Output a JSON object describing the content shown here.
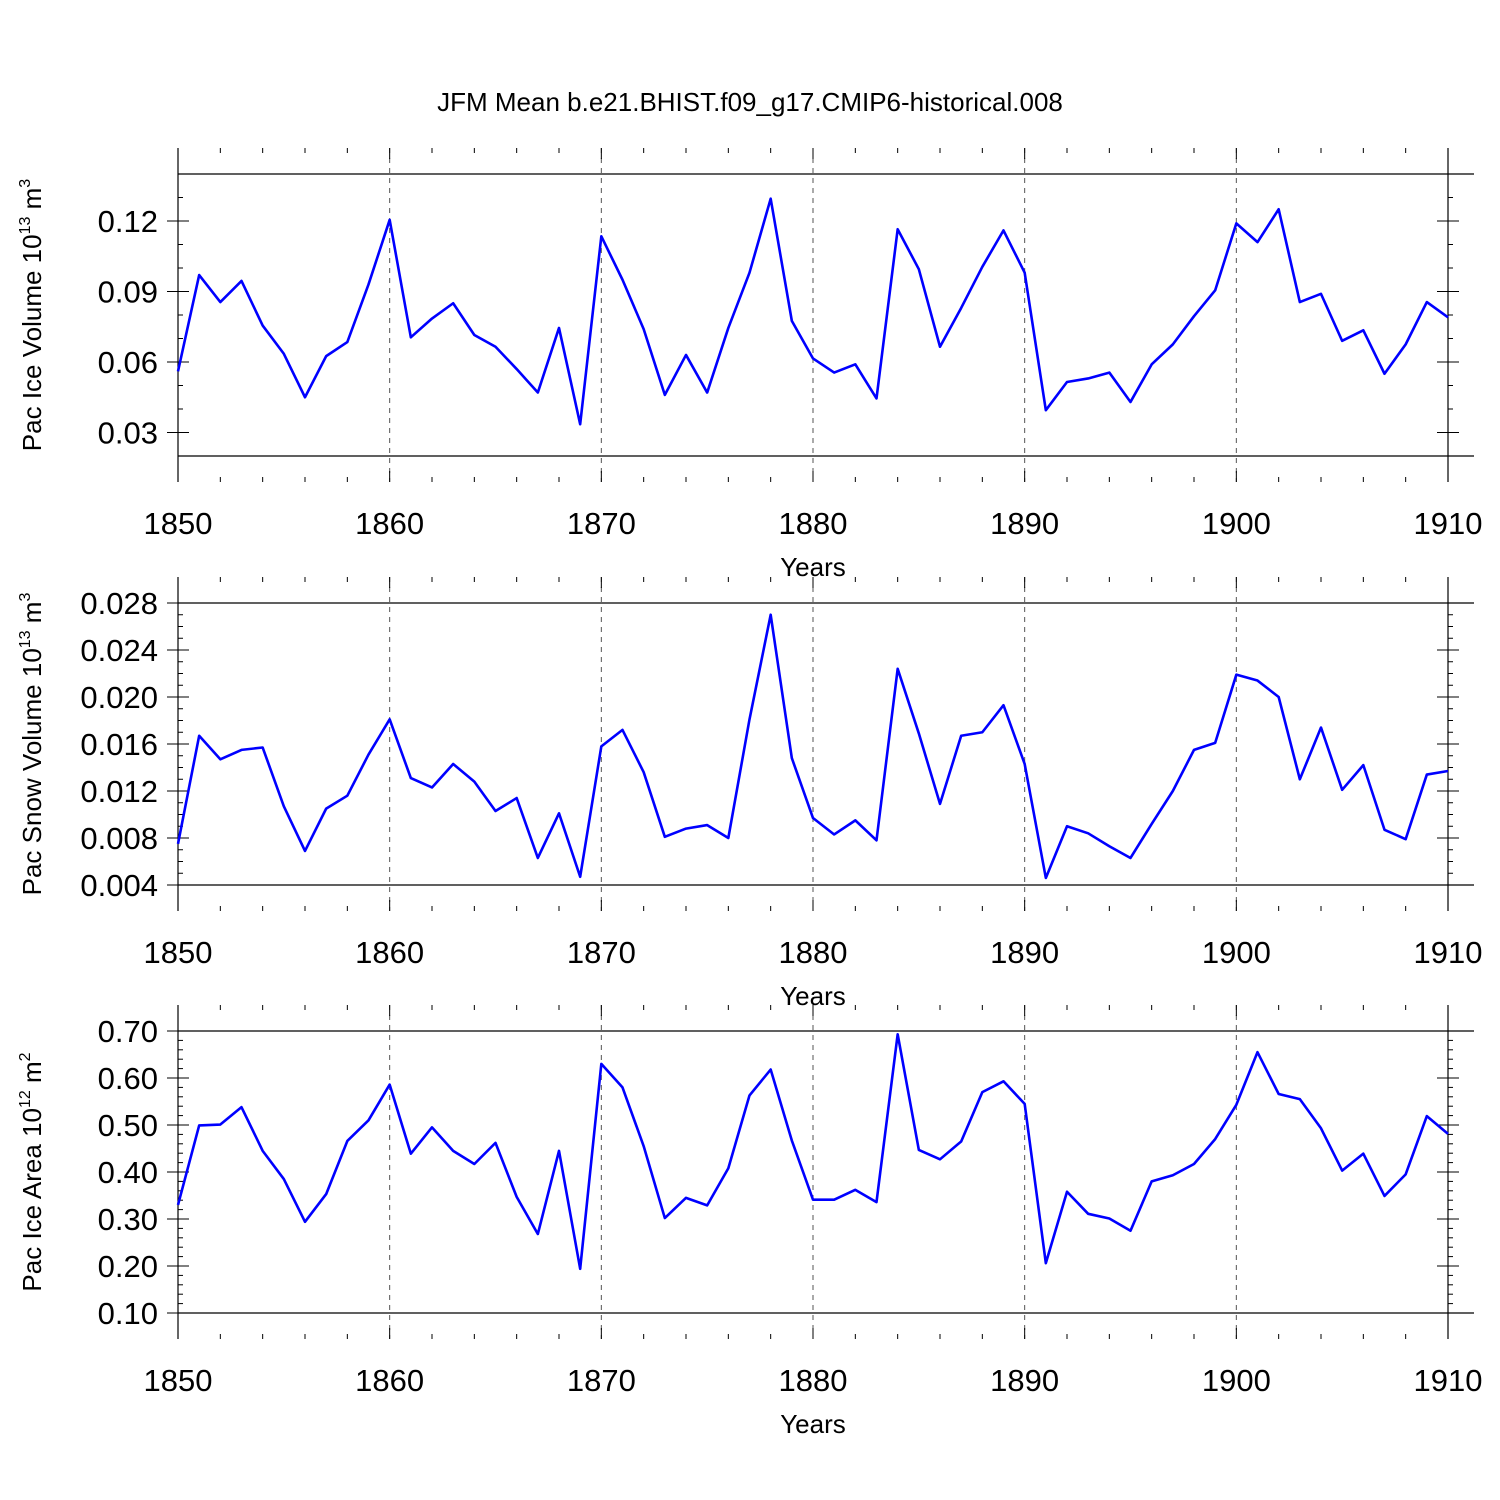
{
  "title": "JFM Mean b.e21.BHIST.f09_g17.CMIP6-historical.008",
  "chart_data": [
    {
      "type": "line",
      "title": "JFM Mean b.e21.BHIST.f09_g17.CMIP6-historical.008",
      "ylabel": "Pac Ice Volume 10",
      "ylabel_exp": "13",
      "ylabel_unit": " m",
      "ylabel_unit_exp": "3",
      "xlabel": "Years",
      "xlim": [
        1850,
        1910
      ],
      "ylim": [
        0.02,
        0.14
      ],
      "yticks": [
        0.03,
        0.06,
        0.09,
        0.12
      ],
      "ytick_labels": [
        "0.03",
        "0.06",
        "0.09",
        "0.12"
      ],
      "yminor_step": 0.01,
      "xticks": [
        1850,
        1860,
        1870,
        1880,
        1890,
        1900,
        1910
      ],
      "xtick_labels": [
        "1850",
        "1860",
        "1870",
        "1880",
        "1890",
        "1900",
        "1910"
      ],
      "grid_x": [
        1860,
        1870,
        1880,
        1890,
        1900
      ],
      "series": [
        {
          "name": "Pac Ice Volume",
          "color": "#0000ff",
          "x_start": 1850,
          "values": [
            0.056,
            0.097,
            0.0855,
            0.0945,
            0.0755,
            0.0635,
            0.045,
            0.0625,
            0.0685,
            0.093,
            0.1205,
            0.0705,
            0.0785,
            0.085,
            0.0715,
            0.0665,
            0.057,
            0.047,
            0.0745,
            0.0335,
            0.1135,
            0.095,
            0.074,
            0.046,
            0.063,
            0.047,
            0.0745,
            0.098,
            0.1295,
            0.0775,
            0.0615,
            0.0555,
            0.059,
            0.0445,
            0.1165,
            0.0995,
            0.0665,
            0.083,
            0.1005,
            0.116,
            0.098,
            0.0395,
            0.0515,
            0.053,
            0.0555,
            0.043,
            0.059,
            0.0675,
            0.0795,
            0.0905,
            0.119,
            0.111,
            0.125,
            0.0855,
            0.089,
            0.069,
            0.0735,
            0.055,
            0.0675,
            0.0855,
            0.079
          ]
        }
      ]
    },
    {
      "type": "line",
      "ylabel": "Pac Snow Volume 10",
      "ylabel_exp": "13",
      "ylabel_unit": " m",
      "ylabel_unit_exp": "3",
      "xlabel": "Years",
      "xlim": [
        1850,
        1910
      ],
      "ylim": [
        0.004,
        0.028
      ],
      "yticks": [
        0.004,
        0.008,
        0.012,
        0.016,
        0.02,
        0.024,
        0.028
      ],
      "ytick_labels": [
        "0.004",
        "0.008",
        "0.012",
        "0.016",
        "0.020",
        "0.024",
        "0.028"
      ],
      "yminor_step": 0.001,
      "xticks": [
        1850,
        1860,
        1870,
        1880,
        1890,
        1900,
        1910
      ],
      "xtick_labels": [
        "1850",
        "1860",
        "1870",
        "1880",
        "1890",
        "1900",
        "1910"
      ],
      "grid_x": [
        1860,
        1870,
        1880,
        1890,
        1900
      ],
      "series": [
        {
          "name": "Pac Snow Volume",
          "color": "#0000ff",
          "x_start": 1850,
          "values": [
            0.0075,
            0.0167,
            0.0147,
            0.0155,
            0.0157,
            0.0107,
            0.0069,
            0.0105,
            0.0116,
            0.0151,
            0.0181,
            0.0131,
            0.0123,
            0.0143,
            0.0128,
            0.0103,
            0.0114,
            0.0063,
            0.0101,
            0.0047,
            0.0158,
            0.0172,
            0.0136,
            0.0081,
            0.0088,
            0.0091,
            0.008,
            0.0181,
            0.027,
            0.0148,
            0.0097,
            0.0083,
            0.0095,
            0.0078,
            0.0224,
            0.0169,
            0.0109,
            0.0167,
            0.017,
            0.0193,
            0.0143,
            0.0046,
            0.009,
            0.0084,
            0.0073,
            0.0063,
            0.0092,
            0.012,
            0.0155,
            0.0161,
            0.0219,
            0.0214,
            0.02,
            0.013,
            0.0174,
            0.0121,
            0.0142,
            0.0087,
            0.0079,
            0.0134,
            0.0137
          ]
        }
      ]
    },
    {
      "type": "line",
      "ylabel": "Pac Ice Area 10",
      "ylabel_exp": "12",
      "ylabel_unit": " m",
      "ylabel_unit_exp": "2",
      "xlabel": "Years",
      "xlim": [
        1850,
        1910
      ],
      "ylim": [
        0.1,
        0.7
      ],
      "yticks": [
        0.1,
        0.2,
        0.3,
        0.4,
        0.5,
        0.6,
        0.7
      ],
      "ytick_labels": [
        "0.10",
        "0.20",
        "0.30",
        "0.40",
        "0.50",
        "0.60",
        "0.70"
      ],
      "yminor_step": 0.02,
      "xticks": [
        1850,
        1860,
        1870,
        1880,
        1890,
        1900,
        1910
      ],
      "xtick_labels": [
        "1850",
        "1860",
        "1870",
        "1880",
        "1890",
        "1900",
        "1910"
      ],
      "grid_x": [
        1860,
        1870,
        1880,
        1890,
        1900
      ],
      "series": [
        {
          "name": "Pac Ice Area",
          "color": "#0000ff",
          "x_start": 1850,
          "values": [
            0.33,
            0.499,
            0.501,
            0.538,
            0.445,
            0.385,
            0.294,
            0.353,
            0.466,
            0.51,
            0.586,
            0.439,
            0.495,
            0.445,
            0.417,
            0.462,
            0.347,
            0.268,
            0.445,
            0.194,
            0.63,
            0.58,
            0.455,
            0.302,
            0.345,
            0.329,
            0.408,
            0.563,
            0.618,
            0.467,
            0.341,
            0.341,
            0.362,
            0.336,
            0.693,
            0.447,
            0.427,
            0.465,
            0.57,
            0.593,
            0.545,
            0.206,
            0.358,
            0.311,
            0.301,
            0.275,
            0.38,
            0.393,
            0.417,
            0.47,
            0.543,
            0.655,
            0.566,
            0.555,
            0.493,
            0.403,
            0.439,
            0.349,
            0.395,
            0.519,
            0.481
          ]
        }
      ]
    }
  ]
}
